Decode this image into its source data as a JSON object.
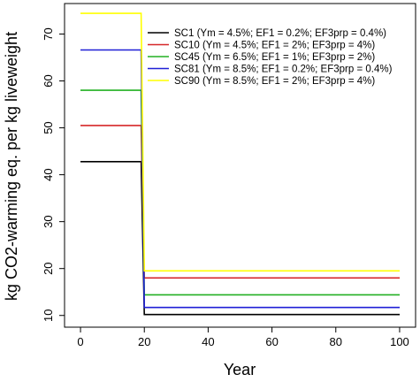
{
  "chart_data": {
    "type": "line",
    "title": "",
    "xlabel": "Year",
    "ylabel": "kg CO2-warming eq. per kg liveweight",
    "xlim": [
      -5,
      105
    ],
    "ylim": [
      7.5,
      76.5
    ],
    "x_ticks": [
      0,
      20,
      40,
      60,
      80,
      100
    ],
    "y_ticks": [
      10,
      20,
      30,
      40,
      50,
      60,
      70
    ],
    "grid": false,
    "legend_position": "top-right",
    "series": [
      {
        "name": "SC1 (Ym = 4.5%; EF1 = 0.2%; EF3prp = 0.4%)",
        "color": "#000000",
        "points": [
          [
            0,
            42.8
          ],
          [
            19,
            42.8
          ],
          [
            20,
            10.2
          ],
          [
            100,
            10.2
          ]
        ]
      },
      {
        "name": "SC10 (Ym = 4.5%; EF1 = 2%; EF3prp = 4%)",
        "color": "#d62728",
        "points": [
          [
            0,
            50.5
          ],
          [
            19,
            50.5
          ],
          [
            20,
            18.0
          ],
          [
            100,
            18.0
          ]
        ]
      },
      {
        "name": "SC45 (Ym = 6.5%; EF1 = 1%; EF3prp = 2%)",
        "color": "#22b022",
        "points": [
          [
            0,
            58.0
          ],
          [
            19,
            58.0
          ],
          [
            20,
            14.4
          ],
          [
            100,
            14.4
          ]
        ]
      },
      {
        "name": "SC81 (Ym = 8.5%; EF1 = 0.2%; EF3prp = 0.4%)",
        "color": "#1f1fd6",
        "points": [
          [
            0,
            66.6
          ],
          [
            19,
            66.6
          ],
          [
            20,
            11.7
          ],
          [
            100,
            11.7
          ]
        ]
      },
      {
        "name": "SC90 (Ym = 8.5%; EF1 = 2%; EF3prp = 4%)",
        "color": "#ffff00",
        "points": [
          [
            0,
            74.4
          ],
          [
            19,
            74.4
          ],
          [
            20,
            19.5
          ],
          [
            100,
            19.5
          ]
        ]
      }
    ]
  }
}
